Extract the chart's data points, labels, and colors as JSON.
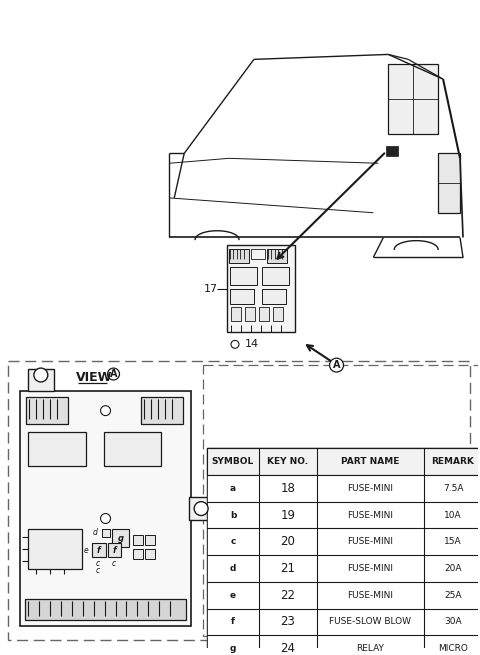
{
  "background_color": "#ffffff",
  "label_17": "17",
  "label_14": "14",
  "label_A": "A",
  "view_label": "VIEW",
  "table_headers": [
    "SYMBOL",
    "KEY NO.",
    "PART NAME",
    "REMARK"
  ],
  "table_rows": [
    [
      "a",
      "18",
      "FUSE-MINI",
      "7.5A"
    ],
    [
      "b",
      "19",
      "FUSE-MINI",
      "10A"
    ],
    [
      "c",
      "20",
      "FUSE-MINI",
      "15A"
    ],
    [
      "d",
      "21",
      "FUSE-MINI",
      "20A"
    ],
    [
      "e",
      "22",
      "FUSE-MINI",
      "25A"
    ],
    [
      "f",
      "23",
      "FUSE-SLOW BLOW",
      "30A"
    ],
    [
      "g",
      "24",
      "RELAY",
      "MICRO"
    ]
  ],
  "line_color": "#1a1a1a",
  "dashed_color": "#666666"
}
